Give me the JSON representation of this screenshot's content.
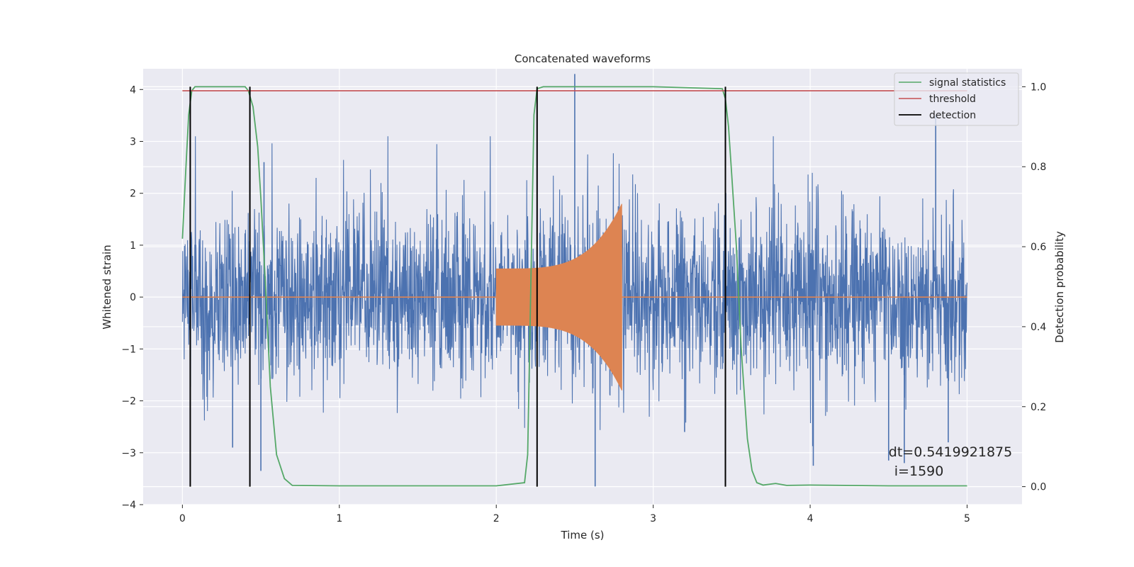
{
  "chart_data": {
    "type": "line",
    "title": "Concatenated waveforms",
    "xlabel": "Time (s)",
    "ylabel": "Whitened strain",
    "y2label": "Detection probability",
    "xlim": [
      -0.25,
      5.35
    ],
    "ylim": [
      -4.0,
      4.4
    ],
    "y2lim": [
      -0.045,
      1.045
    ],
    "x_ticks": [
      0,
      1,
      2,
      3,
      4,
      5
    ],
    "y_ticks": [
      -4,
      -3,
      -2,
      -1,
      0,
      1,
      2,
      3,
      4
    ],
    "y2_ticks": [
      0.0,
      0.2,
      0.4,
      0.6,
      0.8,
      1.0
    ],
    "grid": true,
    "legend": {
      "position": "top-right",
      "entries": [
        "signal statistics",
        "threshold",
        "detection"
      ]
    },
    "colors": {
      "strain": "#4c72b0",
      "chirp": "#dd8452",
      "statistic": "#55a868",
      "threshold": "#c44e52",
      "detection": "#000000",
      "background": "#eaeaf2"
    },
    "series": [
      {
        "name": "Whitened strain",
        "axis": "left",
        "description_values": {
          "x_start": 0.0,
          "x_end": 5.0,
          "typical_abs_max": 2.5,
          "extremes": [
            4.3,
            -3.65
          ]
        }
      },
      {
        "name": "Injected waveform",
        "axis": "left",
        "values": {
          "x_start": 2.0,
          "x_end": 2.8,
          "amp_start": 0.55,
          "amp_end": 1.8
        }
      },
      {
        "name": "signal statistics",
        "axis": "right",
        "x": [
          0.0,
          0.02,
          0.04,
          0.06,
          0.08,
          0.1,
          0.2,
          0.4,
          0.42,
          0.45,
          0.48,
          0.5,
          0.53,
          0.56,
          0.6,
          0.65,
          0.7,
          1.0,
          2.0,
          2.18,
          2.2,
          2.22,
          2.24,
          2.26,
          2.3,
          2.5,
          3.0,
          3.44,
          3.46,
          3.48,
          3.5,
          3.53,
          3.56,
          3.6,
          3.63,
          3.66,
          3.7,
          3.78,
          3.85,
          4.0,
          4.5,
          5.0
        ],
        "y": [
          0.62,
          0.78,
          0.93,
          0.99,
          1.0,
          1.0,
          1.0,
          1.0,
          0.99,
          0.95,
          0.85,
          0.72,
          0.5,
          0.25,
          0.08,
          0.02,
          0.003,
          0.002,
          0.002,
          0.01,
          0.08,
          0.5,
          0.93,
          0.995,
          1.0,
          1.0,
          1.0,
          0.995,
          0.97,
          0.9,
          0.78,
          0.6,
          0.35,
          0.12,
          0.04,
          0.01,
          0.004,
          0.008,
          0.003,
          0.004,
          0.002,
          0.002
        ]
      },
      {
        "name": "threshold",
        "axis": "right",
        "x": [
          0.0,
          5.0
        ],
        "y": [
          0.99,
          0.99
        ]
      },
      {
        "name": "detection",
        "axis": "right",
        "x_positions": [
          0.05,
          0.43,
          2.26,
          3.46
        ],
        "y_range": [
          0.0,
          1.0
        ]
      }
    ],
    "annotation": {
      "line1": "dt=0.5419921875",
      "line2": "i=1590",
      "x": 4.5,
      "y": -3.0
    }
  }
}
